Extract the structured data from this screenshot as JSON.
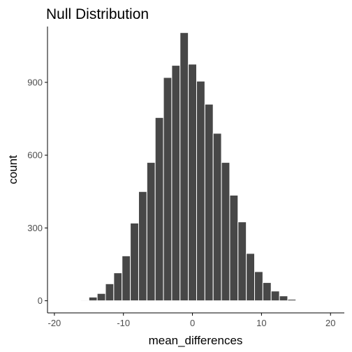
{
  "chart_data": {
    "type": "bar",
    "title": "Null Distribution",
    "xlabel": "mean_differences",
    "ylabel": "count",
    "xlim": [
      -21,
      22
    ],
    "ylim": [
      -50,
      1130
    ],
    "x_ticks": [
      -20,
      -10,
      0,
      10,
      20
    ],
    "x_tick_labels": [
      "-20",
      "-10",
      "0",
      "10",
      "20"
    ],
    "y_ticks": [
      0,
      300,
      600,
      900
    ],
    "y_tick_labels": [
      "0",
      "300",
      "600",
      "900"
    ],
    "bin_width": 1.2,
    "bin_centers": [
      -15.6,
      -14.4,
      -13.2,
      -12.0,
      -10.8,
      -9.6,
      -8.4,
      -7.2,
      -6.0,
      -4.8,
      -3.6,
      -2.4,
      -1.2,
      0.0,
      1.2,
      2.4,
      3.6,
      4.8,
      6.0,
      7.2,
      8.4,
      9.6,
      10.8,
      12.0,
      13.2,
      14.4,
      15.6
    ],
    "values": [
      3,
      15,
      30,
      70,
      115,
      185,
      320,
      450,
      570,
      755,
      920,
      970,
      1105,
      975,
      905,
      810,
      690,
      570,
      435,
      325,
      195,
      120,
      75,
      40,
      20,
      6,
      2
    ],
    "bar_color": "#474747",
    "bar_outline": "#ffffff",
    "axis_color": "#000000",
    "tick_label_color": "#4d4d4d",
    "grid": false
  }
}
